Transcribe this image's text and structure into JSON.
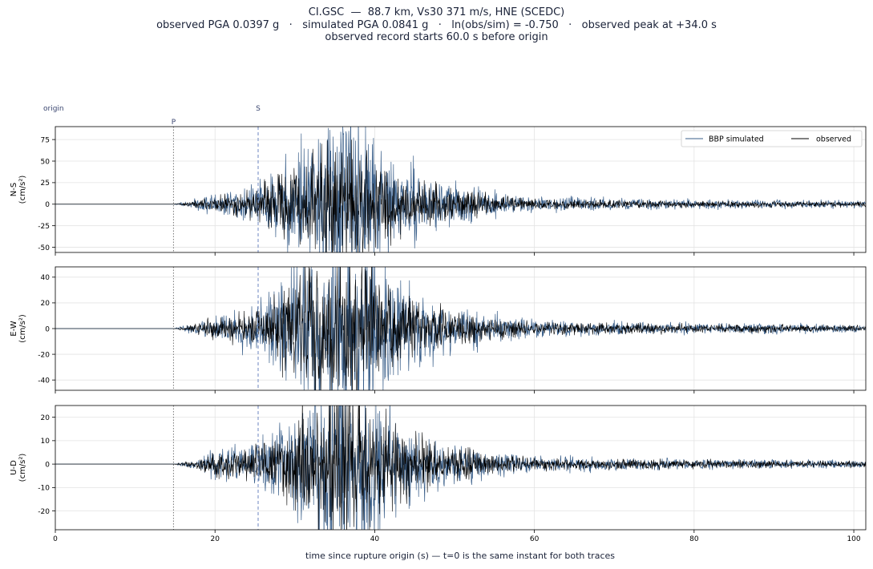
{
  "title_lines": [
    "CI.GSC  —  88.7 km, Vs30 371 m/s, HNE (SCEDC)",
    "observed PGA 0.0397 g   ·   simulated PGA 0.0841 g   ·   ln(obs/sim) = -0.750   ·   observed peak at +34.0 s",
    "observed record starts 60.0 s before origin"
  ],
  "xlabel": "time since rupture origin (s)   —   t=0 is the same instant for both traces",
  "colors": {
    "simulated": "#3a5f8a",
    "observed": "#000000",
    "marker_p": "#777777",
    "marker_s": "#6c86c0",
    "text": "#1a2238"
  },
  "chart_data": {
    "type": "line",
    "xlim": [
      0,
      101.5
    ],
    "x_ticks": [
      0,
      20,
      40,
      60,
      80,
      100
    ],
    "grid": true,
    "legend": {
      "placement": "top-right",
      "entries": [
        "BBP simulated",
        "observed"
      ]
    },
    "markers": [
      {
        "label": "origin",
        "t": 0,
        "style": "none"
      },
      {
        "label": "P",
        "t": 14.8,
        "style": "dotted"
      },
      {
        "label": "S",
        "t": 25.4,
        "style": "dashed"
      }
    ],
    "envelope": [
      [
        0,
        0
      ],
      [
        14.8,
        0
      ],
      [
        17,
        0.8
      ],
      [
        20,
        2.5
      ],
      [
        25,
        4
      ],
      [
        28,
        8
      ],
      [
        32,
        14
      ],
      [
        35,
        18
      ],
      [
        38,
        16
      ],
      [
        42,
        10
      ],
      [
        46,
        6
      ],
      [
        50,
        4
      ],
      [
        55,
        2.5
      ],
      [
        60,
        1.5
      ],
      [
        70,
        1.2
      ],
      [
        85,
        0.9
      ],
      [
        101.5,
        0.7
      ]
    ],
    "panels": [
      {
        "name": "N-S",
        "ylabel": "N-S\n(cm/s²)",
        "ylim": [
          -56,
          90
        ],
        "yticks": [
          75,
          50,
          25,
          0,
          -25,
          -50
        ],
        "amp_sim": 3.0,
        "amp_obs": 2.2,
        "seed_sim": 11,
        "seed_obs": 23,
        "show_legend": true,
        "peaks": [
          {
            "series": "BBP simulated",
            "t": 30.8,
            "value": 82
          },
          {
            "series": "BBP simulated",
            "t": 30.5,
            "value": -50
          },
          {
            "series": "BBP simulated",
            "t": 37.8,
            "value": -48
          }
        ]
      },
      {
        "name": "E-W",
        "ylabel": "E-W\n(cm/s²)",
        "ylim": [
          -48,
          48
        ],
        "yticks": [
          40,
          20,
          0,
          -20,
          -40
        ],
        "amp_sim": 2.4,
        "amp_obs": 1.8,
        "seed_sim": 37,
        "seed_obs": 41,
        "show_legend": false,
        "peaks": [
          {
            "series": "BBP simulated",
            "t": 34.8,
            "value": 43
          },
          {
            "series": "BBP simulated",
            "t": 35.6,
            "value": -44
          }
        ]
      },
      {
        "name": "U-D",
        "ylabel": "U-D\n(cm/s²)",
        "ylim": [
          -28,
          25
        ],
        "yticks": [
          20,
          10,
          0,
          -10,
          -20
        ],
        "amp_sim": 1.2,
        "amp_obs": 1.0,
        "seed_sim": 53,
        "seed_obs": 67,
        "show_legend": false,
        "peaks": [
          {
            "series": "BBP simulated",
            "t": 35.0,
            "value": 22
          },
          {
            "series": "BBP simulated",
            "t": 39.0,
            "value": -25
          }
        ]
      }
    ]
  }
}
